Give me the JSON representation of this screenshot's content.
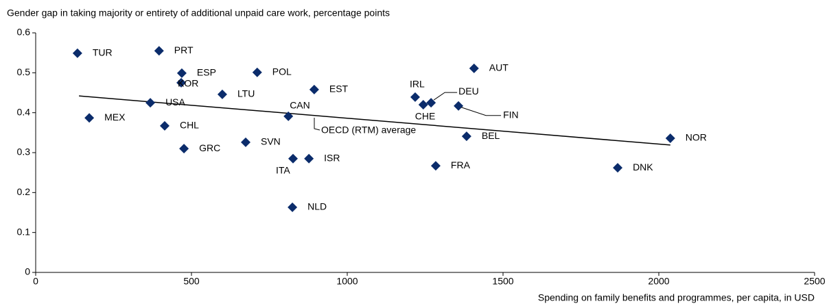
{
  "chart_data": {
    "type": "scatter",
    "y_axis_title": "Gender gap in taking majority or entirety of additional unpaid care work, percentage points",
    "x_axis_title": "Spending on family benefits and programmes, per capita, in USD",
    "xlim": [
      0,
      2500
    ],
    "xticks": [
      0,
      500,
      1000,
      1500,
      2000,
      2500
    ],
    "ylim": [
      0,
      0.6
    ],
    "yticks": [
      0,
      0.1,
      0.2,
      0.3,
      0.4,
      0.5,
      0.6
    ],
    "series": [
      {
        "color": "#0b2c6b",
        "labels": [
          "TUR",
          "PRT",
          "ESP",
          "KOR",
          "POL",
          "LTU",
          "USA",
          "MEX",
          "CHL",
          "GRC",
          "SVN",
          "CAN",
          "ITA",
          "ISR",
          "NLD",
          "EST",
          "IRL",
          "CHE",
          "DEU",
          "FIN",
          "AUT",
          "BEL",
          "FRA",
          "DNK",
          "NOR"
        ],
        "x": [
          134,
          396,
          469,
          467,
          711,
          599,
          368,
          172,
          414,
          476,
          674,
          811,
          826,
          877,
          824,
          894,
          1218,
          1244,
          1269,
          1357,
          1407,
          1383,
          1284,
          1868,
          2037
        ],
        "values": [
          0.549,
          0.555,
          0.499,
          0.475,
          0.501,
          0.446,
          0.425,
          0.387,
          0.367,
          0.31,
          0.326,
          0.391,
          0.285,
          0.285,
          0.163,
          0.458,
          0.439,
          0.42,
          0.425,
          0.417,
          0.511,
          0.341,
          0.267,
          0.262,
          0.336
        ]
      }
    ],
    "trendline": {
      "name": "OECD (RTM) average",
      "color": "#000000",
      "x": [
        139,
        2037
      ],
      "values": [
        0.442,
        0.319
      ]
    }
  }
}
